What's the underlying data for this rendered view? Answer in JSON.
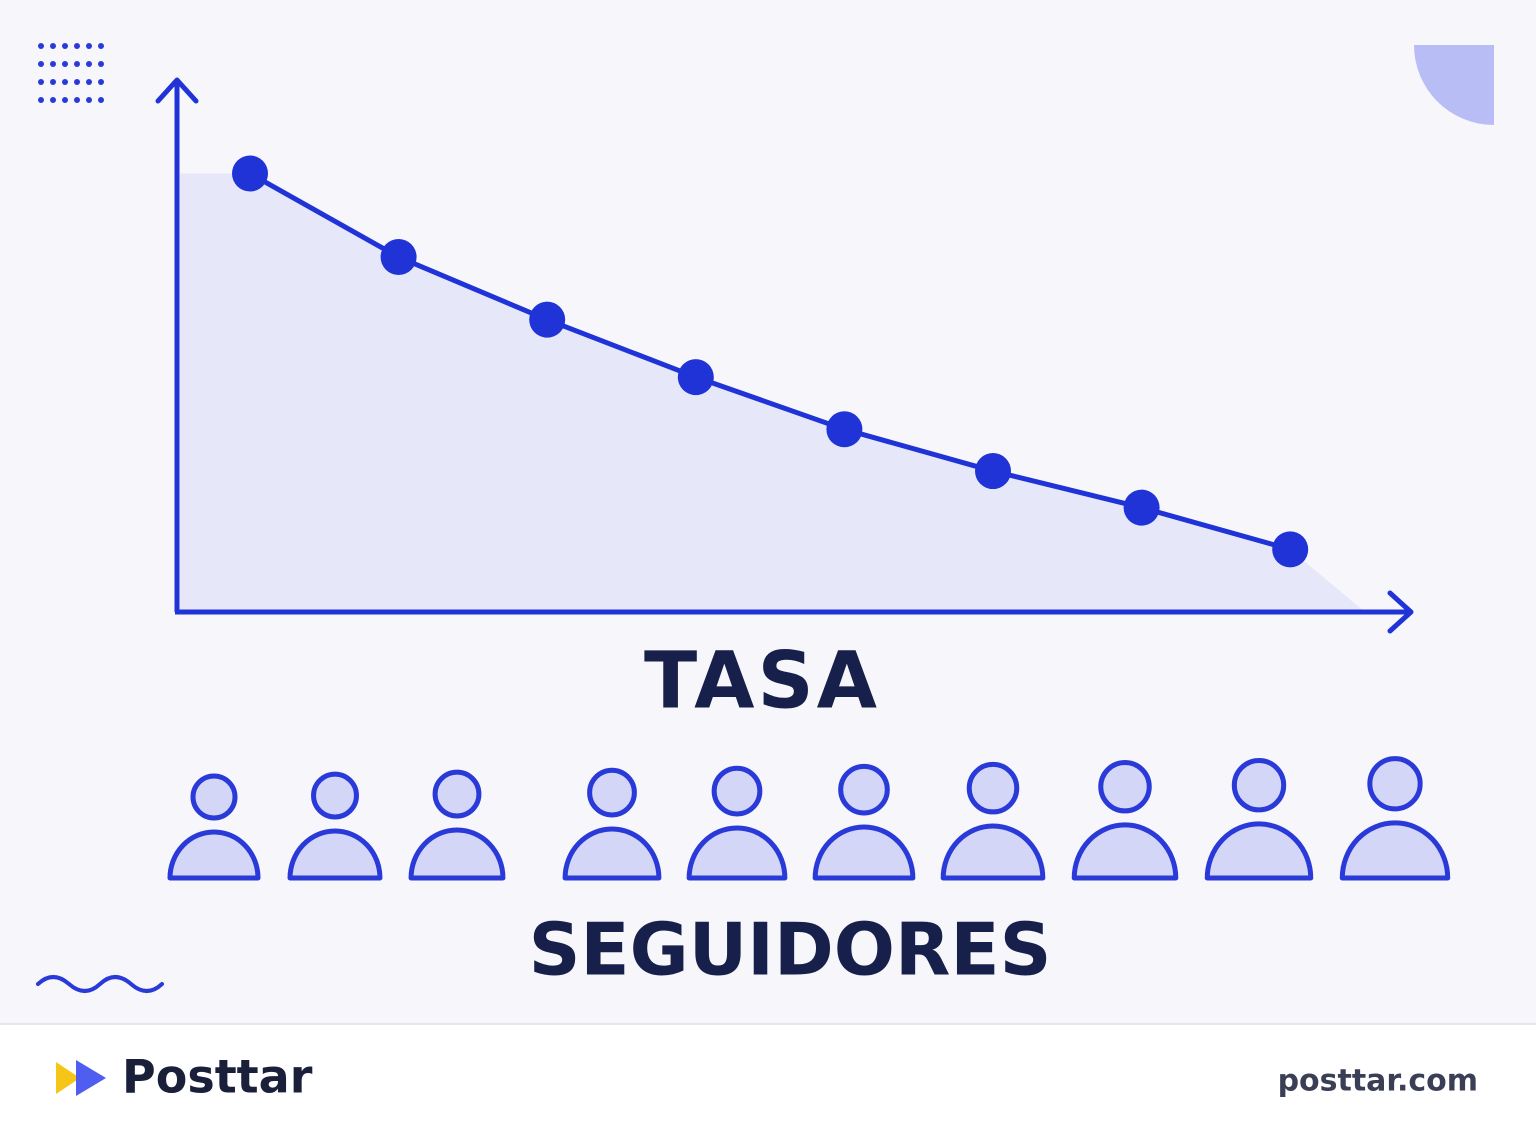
{
  "chart_data": {
    "type": "line",
    "x_label": "TASA",
    "caption": "SEGUIDORES",
    "categories": [
      null,
      null,
      null,
      null,
      null,
      null,
      null,
      null
    ],
    "series": [
      {
        "color": "#1f33d6",
        "values": [
          84,
          68,
          56,
          45,
          35,
          27,
          20,
          12
        ]
      }
    ],
    "ylim": [
      0,
      100
    ]
  },
  "footer": {
    "brand": "Posttar",
    "url": "posttar.com"
  }
}
